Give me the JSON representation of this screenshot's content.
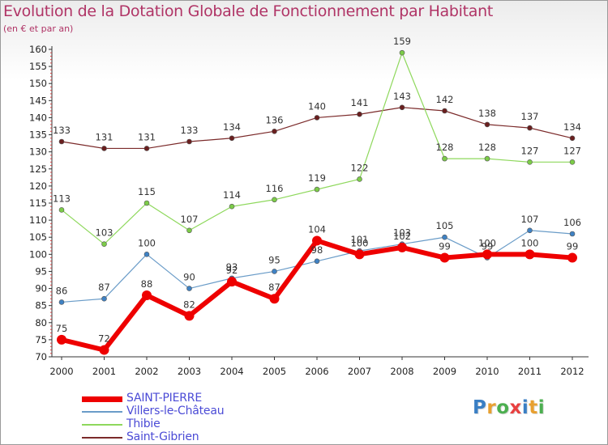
{
  "chart_data": {
    "type": "line",
    "title": "Evolution de la Dotation Globale de Fonctionnement par Habitant",
    "subtitle": "(en € et par an)",
    "xlabel": "",
    "ylabel": "",
    "categories": [
      "2000",
      "2001",
      "2002",
      "2003",
      "2004",
      "2005",
      "2006",
      "2007",
      "2008",
      "2009",
      "2010",
      "2011",
      "2012"
    ],
    "ylim": [
      70,
      160
    ],
    "yticks": [
      70,
      75,
      80,
      85,
      90,
      95,
      100,
      105,
      110,
      115,
      120,
      125,
      130,
      135,
      140,
      145,
      150,
      155,
      160
    ],
    "grid": false,
    "legend_position": "bottom-left",
    "series": [
      {
        "name": "Saint-Gibrien",
        "color": "#7b2a2a",
        "marker_color": "#6a1f1f",
        "width": 1.2,
        "marker_r": 3,
        "values": [
          133,
          131,
          131,
          133,
          134,
          136,
          140,
          141,
          143,
          142,
          138,
          137,
          134
        ],
        "labels": [
          "133",
          "131",
          "131",
          "133",
          "134",
          "136",
          "140",
          "141",
          "143",
          "142",
          "138",
          "137",
          "134"
        ]
      },
      {
        "name": "Thibie",
        "color": "#8ed85c",
        "marker_color": "#7ccc48",
        "width": 1.2,
        "marker_r": 3,
        "values": [
          113,
          103,
          115,
          107,
          114,
          116,
          119,
          122,
          159,
          128,
          128,
          127,
          127
        ],
        "labels": [
          "113",
          "103",
          "115",
          "107",
          "114",
          "116",
          "119",
          "122",
          "159",
          "128",
          "128",
          "127",
          "127"
        ]
      },
      {
        "name": "Villers-le-Château",
        "color": "#6a9cc8",
        "marker_color": "#3f82c4",
        "width": 1.2,
        "marker_r": 3,
        "values": [
          86,
          87,
          100,
          90,
          93,
          95,
          98,
          101,
          103,
          105,
          99,
          107,
          106
        ],
        "labels": [
          "86",
          "87",
          "100",
          "90",
          "93",
          "95",
          "98",
          "101",
          "103",
          "105",
          "99",
          "107",
          "106"
        ]
      },
      {
        "name": "SAINT-PIERRE",
        "color": "#ee0000",
        "marker_color": "#ee0000",
        "width": 6,
        "marker_r": 6,
        "values": [
          75,
          72,
          88,
          82,
          92,
          87,
          104,
          100,
          102,
          99,
          100,
          100,
          99
        ],
        "labels": [
          "75",
          "72",
          "88",
          "82",
          "92",
          "87",
          "104",
          "100",
          "102",
          "99",
          "100",
          "100",
          "99"
        ]
      }
    ]
  },
  "legend": [
    {
      "label": "SAINT-PIERRE",
      "color": "#ee0000",
      "thickness": "thick"
    },
    {
      "label": "Villers-le-Château",
      "color": "#6a9cc8",
      "thickness": "thin"
    },
    {
      "label": "Thibie",
      "color": "#8ed85c",
      "thickness": "thin"
    },
    {
      "label": "Saint-Gibrien",
      "color": "#7b2a2a",
      "thickness": "thin"
    }
  ],
  "brand": {
    "letters": [
      "P",
      "r",
      "o",
      "x",
      "i",
      "t",
      "i"
    ],
    "colors": [
      "#3a7fc4",
      "#e8a030",
      "#4caf50",
      "#e84040",
      "#3a7fc4",
      "#e8a030",
      "#4caf50"
    ]
  }
}
